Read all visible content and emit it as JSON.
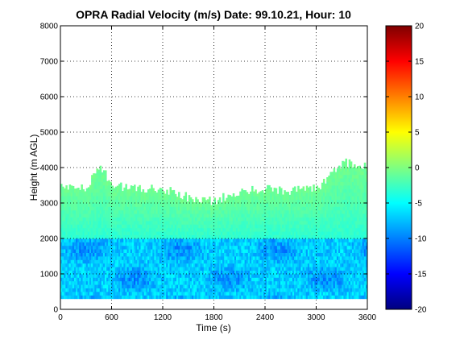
{
  "chart_data": {
    "type": "heatmap",
    "title": "OPRA Radial Velocity (m/s)  Date: 99.10.21, Hour: 10",
    "xlabel": "Time (s)",
    "ylabel": "Height (m AGL)",
    "xlim": [
      0,
      3600
    ],
    "ylim": [
      0,
      8000
    ],
    "xticks": [
      0,
      600,
      1200,
      1800,
      2400,
      3000,
      3600
    ],
    "yticks": [
      0,
      1000,
      2000,
      3000,
      4000,
      5000,
      6000,
      7000,
      8000
    ],
    "grid": true,
    "colorbar": {
      "range": [
        -20,
        20
      ],
      "ticks": [
        -20,
        -15,
        -10,
        -5,
        0,
        5,
        10,
        15,
        20
      ],
      "colormap": "jet",
      "placement": "right"
    },
    "data_region": {
      "x_start": 0,
      "x_end": 3600,
      "y_bottom": 300,
      "lower_layer_top": 1950,
      "lower_layer_velocity_range": [
        -11,
        -5
      ],
      "upper_layer_velocity_range": [
        -5,
        0
      ],
      "echo_top_samples": [
        {
          "time": 0,
          "height": 3500
        },
        {
          "time": 300,
          "height": 3400
        },
        {
          "time": 450,
          "height": 4100
        },
        {
          "time": 600,
          "height": 3500
        },
        {
          "time": 900,
          "height": 3400
        },
        {
          "time": 1200,
          "height": 3400
        },
        {
          "time": 1500,
          "height": 3150
        },
        {
          "time": 1800,
          "height": 3050
        },
        {
          "time": 2100,
          "height": 3350
        },
        {
          "time": 2400,
          "height": 3400
        },
        {
          "time": 2700,
          "height": 3350
        },
        {
          "time": 3000,
          "height": 3400
        },
        {
          "time": 3300,
          "height": 4150
        },
        {
          "time": 3600,
          "height": 4000
        }
      ]
    }
  }
}
